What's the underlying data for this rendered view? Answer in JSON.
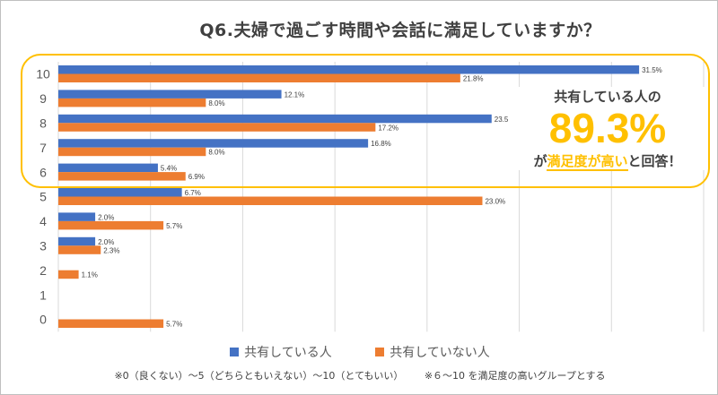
{
  "chart_data": {
    "type": "bar",
    "orientation": "horizontal",
    "title": "Q6.夫婦で過ごす時間や会話に満足していますか？",
    "categories": [
      "10",
      "9",
      "8",
      "7",
      "6",
      "5",
      "4",
      "3",
      "2",
      "1",
      "0"
    ],
    "series": [
      {
        "name": "共有している人",
        "color": "#4472c4",
        "values": [
          31.5,
          12.1,
          23.5,
          16.8,
          5.4,
          6.7,
          2.0,
          2.0,
          null,
          null,
          null
        ],
        "labels": [
          "31.5%",
          "12.1%",
          "23.5%",
          "16.8%",
          "5.4%",
          "6.7%",
          "2.0%",
          "2.0%",
          "",
          "",
          ""
        ]
      },
      {
        "name": "共有していない人",
        "color": "#ed7d31",
        "values": [
          21.8,
          8.0,
          17.2,
          8.0,
          6.9,
          23.0,
          5.7,
          2.3,
          1.1,
          null,
          5.7
        ],
        "labels": [
          "21.8%",
          "8.0%",
          "17.2%",
          "8.0%",
          "6.9%",
          "23.0%",
          "5.7%",
          "2.3%",
          "1.1%",
          "",
          "5.7%"
        ]
      }
    ],
    "xlim": [
      0,
      35
    ],
    "grid": true,
    "legend": "bottom",
    "highlight_categories": [
      "10",
      "9",
      "8",
      "7",
      "6"
    ]
  },
  "callout": {
    "line1": "共有している人の",
    "big": "89.3%",
    "line3_pre": "が",
    "line3_mid": "満足度が高い",
    "line3_post": "と回答！",
    "accent_color": "#ffc000"
  },
  "legend": {
    "item1": "共有している人",
    "item2": "共有していない人"
  },
  "footnote": {
    "note1": "※0（良くない）～5（どちらともいえない）～10（とてもいい）",
    "note2": "※６～10 を満足度の高いグループとする"
  }
}
